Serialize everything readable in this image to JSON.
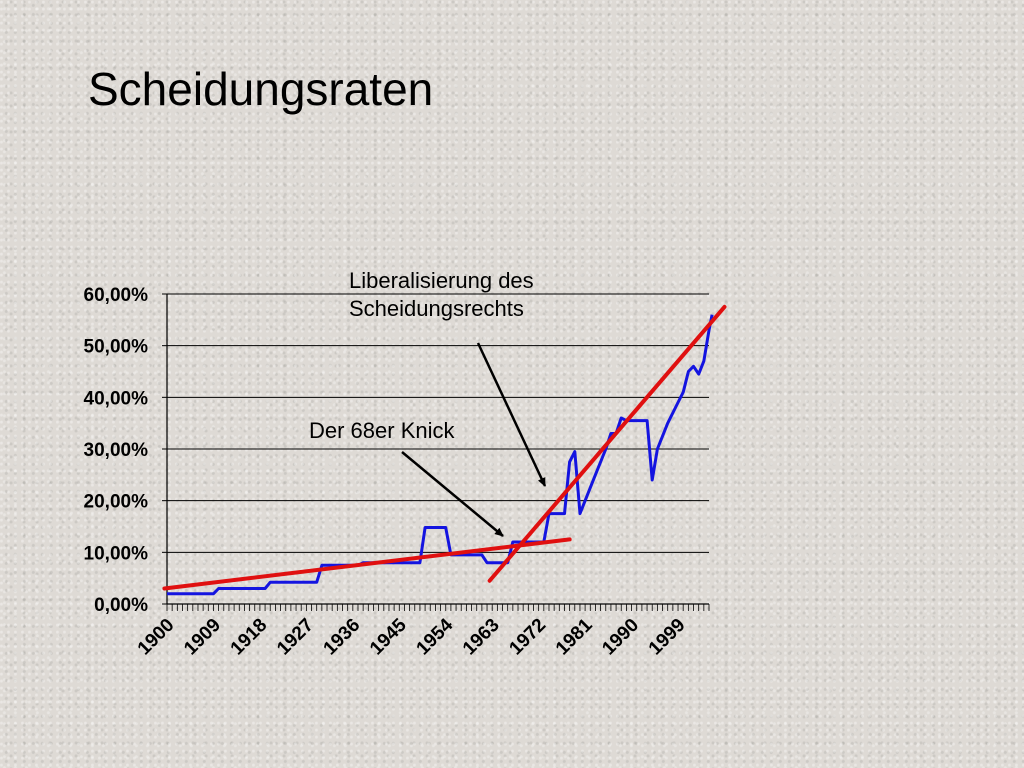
{
  "title": "Scheidungsraten",
  "chart_data": {
    "type": "line",
    "title": "",
    "xlabel": "",
    "ylabel": "",
    "x_start": 1900,
    "x_end": 2005,
    "x_tick_labels": [
      "1900",
      "1909",
      "1918",
      "1927",
      "1936",
      "1945",
      "1954",
      "1963",
      "1972",
      "1981",
      "1990",
      "1999"
    ],
    "y_tick_labels": [
      "0,00%",
      "10,00%",
      "20,00%",
      "30,00%",
      "40,00%",
      "50,00%",
      "60,00%"
    ],
    "ylim": [
      0,
      60
    ],
    "grid": true,
    "series": [
      {
        "color": "#1414e0",
        "points": [
          [
            1900,
            2
          ],
          [
            1909,
            2
          ],
          [
            1910,
            3
          ],
          [
            1919,
            3
          ],
          [
            1920,
            4.2
          ],
          [
            1929,
            4.2
          ],
          [
            1930,
            7.5
          ],
          [
            1937,
            7.5
          ],
          [
            1938,
            8
          ],
          [
            1949,
            8
          ],
          [
            1950,
            14.8
          ],
          [
            1954,
            14.8
          ],
          [
            1955,
            9.5
          ],
          [
            1961,
            9.5
          ],
          [
            1962,
            8
          ],
          [
            1966,
            8
          ],
          [
            1967,
            12
          ],
          [
            1973,
            12
          ],
          [
            1974,
            17.5
          ],
          [
            1977,
            17.5
          ],
          [
            1978,
            27.5
          ],
          [
            1979,
            29.5
          ],
          [
            1980,
            17.5
          ],
          [
            1981,
            20
          ],
          [
            1983,
            25
          ],
          [
            1985,
            30
          ],
          [
            1986,
            33
          ],
          [
            1987,
            33
          ],
          [
            1988,
            36
          ],
          [
            1989,
            35.5
          ],
          [
            1993,
            35.5
          ],
          [
            1994,
            24
          ],
          [
            1995,
            30
          ],
          [
            1997,
            35
          ],
          [
            1999,
            39
          ],
          [
            2000,
            41
          ],
          [
            2001,
            45
          ],
          [
            2002,
            46
          ],
          [
            2003,
            44.5
          ],
          [
            2004,
            47
          ],
          [
            2005,
            53
          ],
          [
            2005.6,
            56
          ]
        ]
      }
    ],
    "trend_lines": [
      {
        "color": "#e01010",
        "from": [
          1899.5,
          3
        ],
        "to": [
          1978,
          12.5
        ]
      },
      {
        "color": "#e01010",
        "from": [
          1962.5,
          4.5
        ],
        "to": [
          2008,
          57.5
        ]
      }
    ],
    "annotations": [
      {
        "lines": [
          "Liberalisierung des",
          "Scheidungsrechts"
        ]
      },
      {
        "lines": [
          "Der 68er Knick"
        ]
      }
    ]
  }
}
